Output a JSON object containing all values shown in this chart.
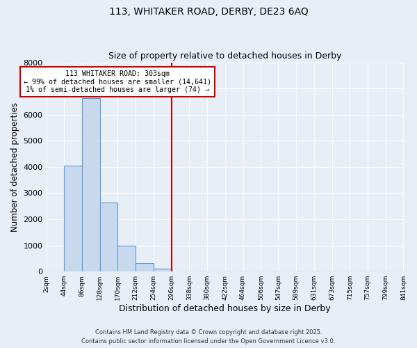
{
  "title1": "113, WHITAKER ROAD, DERBY, DE23 6AQ",
  "title2": "Size of property relative to detached houses in Derby",
  "xlabel": "Distribution of detached houses by size in Derby",
  "ylabel": "Number of detached properties",
  "bar_values": [
    0,
    4050,
    6630,
    2650,
    980,
    330,
    100,
    0,
    0,
    0,
    0,
    0,
    0,
    0,
    0,
    0,
    0,
    0,
    0,
    0
  ],
  "bin_edges": [
    2,
    44,
    86,
    128,
    170,
    212,
    254,
    296,
    338,
    380,
    422,
    464,
    506,
    547,
    589,
    631,
    673,
    715,
    757,
    799,
    841
  ],
  "bin_labels": [
    "2sqm",
    "44sqm",
    "86sqm",
    "128sqm",
    "170sqm",
    "212sqm",
    "254sqm",
    "296sqm",
    "338sqm",
    "380sqm",
    "422sqm",
    "464sqm",
    "506sqm",
    "547sqm",
    "589sqm",
    "631sqm",
    "673sqm",
    "715sqm",
    "757sqm",
    "799sqm",
    "841sqm"
  ],
  "ylim": [
    0,
    8000
  ],
  "yticks": [
    0,
    1000,
    2000,
    3000,
    4000,
    5000,
    6000,
    7000,
    8000
  ],
  "bar_color": "#c8d9ee",
  "bar_edge_color": "#5b9bd5",
  "vline_x": 296,
  "vline_color": "#cc0000",
  "annotation_text": "113 WHITAKER ROAD: 303sqm\n← 99% of detached houses are smaller (14,641)\n1% of semi-detached houses are larger (74) →",
  "annotation_box_color": "#ffffff",
  "annotation_box_edge": "#cc0000",
  "bg_color": "#e8eef5",
  "grid_color": "#ffffff",
  "footer1": "Contains HM Land Registry data © Crown copyright and database right 2025.",
  "footer2": "Contains public sector information licensed under the Open Government Licence v3.0."
}
